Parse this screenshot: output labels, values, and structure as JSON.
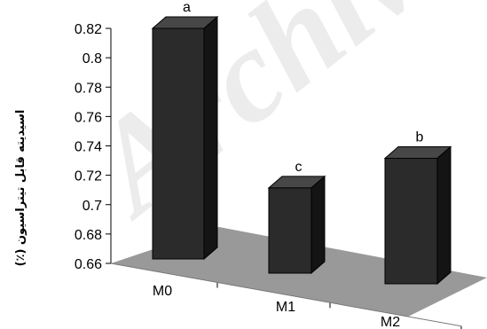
{
  "chart_data": {
    "type": "bar",
    "categories": [
      "M0",
      "M1",
      "M2"
    ],
    "values": [
      0.82,
      0.715,
      0.74
    ],
    "significance_letters": [
      "a",
      "c",
      "b"
    ],
    "ylabel": "اسیدیته قابل تیتراسیون (٪)",
    "xlabel": "",
    "title": "",
    "ylim": [
      0.66,
      0.82
    ],
    "yticks": [
      0.66,
      0.68,
      0.7,
      0.72,
      0.74,
      0.76,
      0.78,
      0.8,
      0.82
    ],
    "ytick_labels": [
      "0.66",
      "0.68",
      "0.7",
      "0.72",
      "0.74",
      "0.76",
      "0.78",
      "0.8",
      "0.82"
    ],
    "grid": false,
    "legend": "none",
    "style": "3d-column",
    "colors": {
      "bar_front": "#2b2b2b",
      "bar_top": "#474747",
      "bar_side": "#141414",
      "floor": "#999999",
      "axis": "#000000",
      "watermark": "#dcdcdc"
    }
  },
  "watermark": "Archive"
}
